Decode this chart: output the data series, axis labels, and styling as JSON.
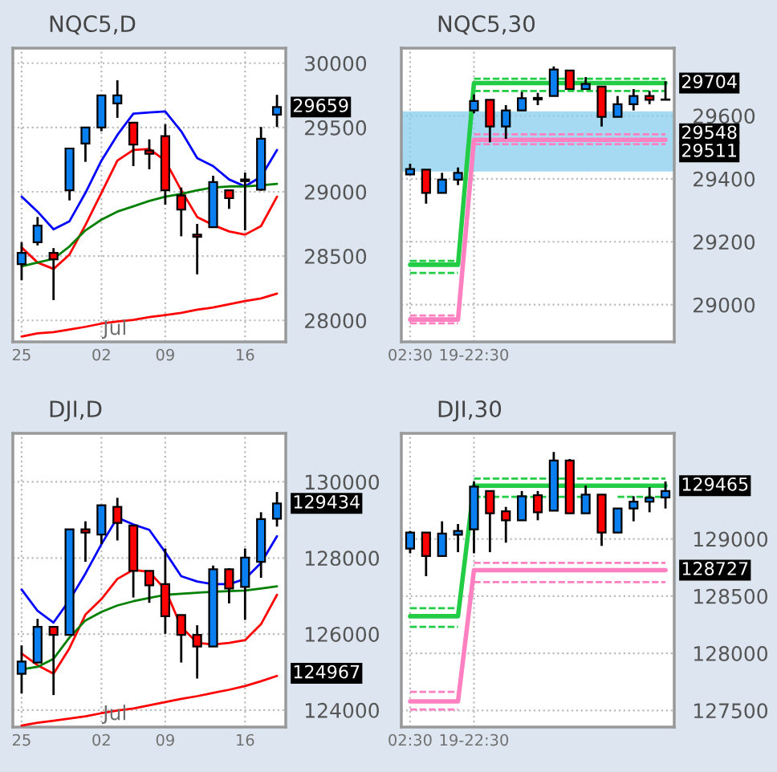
{
  "chart_data": [
    {
      "type": "candlestick",
      "title": "NQC5,D",
      "categories": [
        "25",
        null,
        null,
        null,
        null,
        "02",
        null,
        null,
        null,
        "09",
        null,
        null,
        null,
        null,
        "16",
        null,
        null
      ],
      "ohlc": [
        [
          28437,
          28608,
          28312,
          28525
        ],
        [
          28608,
          28804,
          28583,
          28737
        ],
        [
          28525,
          28562,
          28158,
          28475
        ],
        [
          29012,
          29337,
          28933,
          29337
        ],
        [
          29375,
          29500,
          29233,
          29500
        ],
        [
          29500,
          29750,
          29471,
          29750
        ],
        [
          29687,
          29867,
          29575,
          29750
        ],
        [
          29537,
          29537,
          29200,
          29367
        ],
        [
          29321,
          29408,
          29175,
          29296
        ],
        [
          29433,
          29525,
          28900,
          29012
        ],
        [
          28971,
          29033,
          28654,
          28862
        ],
        [
          28667,
          28750,
          28358,
          28650
        ],
        [
          28725,
          29125,
          28725,
          29075
        ],
        [
          29012,
          29012,
          28867,
          28950
        ],
        [
          29096,
          29150,
          28700,
          29083
        ],
        [
          29017,
          29504,
          29008,
          29412
        ],
        [
          29600,
          29754,
          29504,
          29659
        ]
      ],
      "colors": [
        "#0a7ff0",
        "#0a7ff0",
        "#ff0000",
        "#0a7ff0",
        "#0a7ff0",
        "#0a7ff0",
        "#0a7ff0",
        "#ff0000",
        "#ff0000",
        "#ff0000",
        "#ff0000",
        "#ff0000",
        "#0a7ff0",
        "#ff0000",
        "#ff0000",
        "#0a7ff0",
        "#0a7ff0"
      ],
      "series": [
        {
          "type": "line",
          "color": "#0000ff",
          "values": [
            28962,
            28846,
            28708,
            28771,
            28992,
            29242,
            29442,
            29608,
            29617,
            29625,
            29471,
            29262,
            29200,
            29096,
            29042,
            29117,
            29325
          ]
        },
        {
          "type": "line",
          "color": "#ff0000",
          "values": [
            28567,
            28450,
            28400,
            28512,
            28742,
            28992,
            29242,
            29325,
            29333,
            29242,
            29012,
            28804,
            28742,
            28692,
            28667,
            28733,
            28962
          ]
        },
        {
          "type": "line",
          "color": "#008000",
          "values": [
            28421,
            28450,
            28479,
            28575,
            28700,
            28783,
            28846,
            28887,
            28929,
            28962,
            28983,
            29012,
            29033,
            29042,
            29042,
            29050,
            29062
          ]
        },
        {
          "type": "line",
          "color": "#ff0000",
          "values": [
            27875,
            27900,
            27908,
            27929,
            27950,
            27975,
            27992,
            28004,
            28025,
            28042,
            28058,
            28083,
            28100,
            28125,
            28150,
            28171,
            28208
          ]
        }
      ],
      "ylim": [
        27833,
        30117
      ],
      "yticks": [
        28000,
        28500,
        29000,
        29500,
        30000
      ],
      "grid": true,
      "annotations": [
        "Jul",
        "29659"
      ]
    },
    {
      "type": "candlestick",
      "title": "NQC5,30",
      "categories": [
        "02:30",
        null,
        null,
        null,
        "19-22:30",
        null,
        null,
        null,
        null,
        null,
        null,
        null,
        null,
        null,
        null,
        null,
        null
      ],
      "ohlc": [
        [
          29414,
          29448,
          29414,
          29431
        ],
        [
          29429,
          29429,
          29321,
          29355
        ],
        [
          29355,
          29419,
          29355,
          29397
        ],
        [
          29397,
          29436,
          29380,
          29419
        ],
        [
          29617,
          29668,
          29608,
          29647
        ],
        [
          29651,
          29651,
          29516,
          29566
        ],
        [
          29566,
          29634,
          29527,
          29617
        ],
        [
          29617,
          29676,
          29617,
          29656
        ],
        [
          29652,
          29673,
          29634,
          29657
        ],
        [
          29663,
          29757,
          29663,
          29747
        ],
        [
          29744,
          29744,
          29685,
          29685
        ],
        [
          29685,
          29723,
          29685,
          29701
        ],
        [
          29693,
          29693,
          29566,
          29597
        ],
        [
          29597,
          29663,
          29597,
          29637
        ],
        [
          29637,
          29685,
          29617,
          29663
        ],
        [
          29663,
          29679,
          29637,
          29651
        ],
        [
          29652,
          29710,
          29651,
          29651
        ]
      ],
      "colors": [
        "#0a7ff0",
        "#ff0000",
        "#0a7ff0",
        "#0a7ff0",
        "#0a7ff0",
        "#ff0000",
        "#0a7ff0",
        "#0a7ff0",
        "#0a7ff0",
        "#0a7ff0",
        "#ff0000",
        "#0a7ff0",
        "#ff0000",
        "#0a7ff0",
        "#0a7ff0",
        "#ff0000",
        "#ff0000"
      ],
      "series": [
        {
          "type": "line",
          "color": "#22cc44",
          "line_style": "solid",
          "values": [
            29127,
            29127,
            29127,
            29127,
            29704,
            29704,
            29704,
            29704,
            29704,
            29704,
            29704,
            29704,
            29704,
            29704,
            29704,
            29704,
            29704
          ]
        },
        {
          "type": "line",
          "color": "#22cc44",
          "line_style": "dashed",
          "values": [
            29139,
            29139,
            29139,
            29139,
            null,
            null,
            null,
            null,
            null,
            null,
            null,
            null,
            null,
            null,
            null,
            null,
            null
          ]
        },
        {
          "type": "line",
          "color": "#22cc44",
          "line_style": "dashed",
          "values": [
            29101,
            29101,
            29101,
            29101,
            null,
            null,
            null,
            null,
            null,
            null,
            null,
            null,
            null,
            null,
            null,
            null,
            null
          ]
        },
        {
          "type": "line",
          "color": "#22cc44",
          "line_style": "dashed",
          "values": [
            null,
            null,
            null,
            null,
            29718,
            29718,
            29718,
            29718,
            29718,
            29718,
            29718,
            29718,
            29718,
            29718,
            29718,
            29718,
            29718
          ]
        },
        {
          "type": "line",
          "color": "#22cc44",
          "line_style": "dashed",
          "values": [
            null,
            null,
            null,
            null,
            29679,
            29679,
            29679,
            29679,
            29679,
            29679,
            29679,
            29679,
            29679,
            29679,
            29679,
            29679,
            29679
          ]
        },
        {
          "type": "line",
          "color": "#ff80c0",
          "line_style": "solid",
          "values": [
            28953,
            28953,
            28953,
            28953,
            29524,
            29524,
            29524,
            29524,
            29524,
            29524,
            29524,
            29524,
            29524,
            29524,
            29524,
            29524,
            29524
          ]
        },
        {
          "type": "line",
          "color": "#ff80c0",
          "line_style": "dashed",
          "values": [
            28966,
            28966,
            28966,
            28966,
            null,
            null,
            null,
            null,
            null,
            null,
            null,
            null,
            null,
            null,
            null,
            null,
            null
          ]
        },
        {
          "type": "line",
          "color": "#ff80c0",
          "line_style": "dashed",
          "values": [
            28941,
            28941,
            28941,
            28941,
            null,
            null,
            null,
            null,
            null,
            null,
            null,
            null,
            null,
            null,
            null,
            null,
            null
          ]
        },
        {
          "type": "line",
          "color": "#ff80c0",
          "line_style": "dashed",
          "values": [
            null,
            null,
            null,
            null,
            29541,
            29541,
            29541,
            29541,
            29541,
            29541,
            29541,
            29541,
            29541,
            29541,
            29541,
            29541,
            29541
          ]
        },
        {
          "type": "line",
          "color": "#ff80c0",
          "line_style": "dashed",
          "values": [
            null,
            null,
            null,
            null,
            29510,
            29510,
            29510,
            29510,
            29510,
            29510,
            29510,
            29510,
            29510,
            29510,
            29510,
            29510,
            29510
          ]
        }
      ],
      "bands": [
        {
          "axis": "y",
          "from": 29423,
          "to": 29614,
          "color": "#87cdee"
        }
      ],
      "ylim": [
        28882,
        29815
      ],
      "yticks": [
        29000,
        29200,
        29400,
        29600
      ],
      "grid": true,
      "annotations": [
        "29704",
        "29548",
        "29511"
      ]
    },
    {
      "type": "candlestick",
      "title": "DJI,D",
      "categories": [
        "25",
        null,
        null,
        null,
        null,
        "02",
        null,
        null,
        null,
        "09",
        null,
        null,
        null,
        null,
        "16",
        null,
        null
      ],
      "ohlc": [
        [
          124956,
          125699,
          124438,
          125278
        ],
        [
          125250,
          126399,
          125250,
          126189
        ],
        [
          126189,
          126189,
          124396,
          125979
        ],
        [
          125979,
          128753,
          125979,
          128753
        ],
        [
          128753,
          128963,
          127899,
          128669
        ],
        [
          128613,
          129384,
          128361,
          129384
        ],
        [
          129342,
          129580,
          128459,
          128921
        ],
        [
          128851,
          128851,
          126960,
          127660
        ],
        [
          127660,
          127660,
          126820,
          127282
        ],
        [
          127310,
          128249,
          126007,
          126470
        ],
        [
          126498,
          126498,
          125251,
          125979
        ],
        [
          125979,
          126231,
          124830,
          125671
        ],
        [
          125671,
          127800,
          125671,
          127702
        ],
        [
          127702,
          127730,
          126806,
          127198
        ],
        [
          127240,
          128249,
          126371,
          128011
        ],
        [
          127899,
          129201,
          127478,
          129019
        ],
        [
          129033,
          129734,
          128823,
          129434
        ]
      ],
      "colors": [
        "#0a7ff0",
        "#0a7ff0",
        "#ff0000",
        "#0a7ff0",
        "#ff0000",
        "#0a7ff0",
        "#ff0000",
        "#ff0000",
        "#ff0000",
        "#ff0000",
        "#ff0000",
        "#ff0000",
        "#0a7ff0",
        "#ff0000",
        "#0a7ff0",
        "#0a7ff0",
        "#0a7ff0"
      ],
      "series": [
        {
          "type": "line",
          "color": "#0000ff",
          "values": [
            127170,
            126609,
            126301,
            126890,
            127590,
            128361,
            129061,
            128879,
            128739,
            128151,
            127520,
            127380,
            127310,
            127310,
            127450,
            127870,
            128571
          ]
        },
        {
          "type": "line",
          "color": "#ff0000",
          "values": [
            125489,
            125181,
            124956,
            125629,
            126512,
            126918,
            127450,
            127688,
            127632,
            127170,
            126189,
            125769,
            125727,
            125769,
            125839,
            126259,
            127030
          ]
        },
        {
          "type": "line",
          "color": "#008000",
          "values": [
            125069,
            125139,
            125349,
            125909,
            126357,
            126582,
            126750,
            126862,
            126946,
            127030,
            127058,
            127086,
            127114,
            127128,
            127142,
            127198,
            127254
          ]
        },
        {
          "type": "line",
          "color": "#ff0000",
          "values": [
            123597,
            123667,
            123723,
            123779,
            123835,
            123919,
            123989,
            124045,
            124129,
            124213,
            124297,
            124367,
            124452,
            124536,
            124634,
            124760,
            124900
          ]
        }
      ],
      "ylim": [
        123555,
        131275
      ],
      "yticks": [
        124000,
        126000,
        128000,
        130000
      ],
      "grid": true,
      "annotations": [
        "Jul",
        "129434",
        "124967"
      ]
    },
    {
      "type": "candlestick",
      "title": "DJI,30",
      "categories": [
        "02:30",
        null,
        null,
        null,
        "19-22:30",
        null,
        null,
        null,
        null,
        null,
        null,
        null,
        null,
        null,
        null,
        null,
        null
      ],
      "ohlc": [
        [
          128916,
          129070,
          128874,
          129056
        ],
        [
          129056,
          129056,
          128674,
          128851
        ],
        [
          128851,
          129154,
          128851,
          129047
        ],
        [
          129037,
          129130,
          128884,
          129070
        ],
        [
          129084,
          129503,
          128874,
          129457
        ],
        [
          129419,
          129419,
          128884,
          129224
        ],
        [
          129242,
          129280,
          128967,
          129163
        ],
        [
          129163,
          129419,
          129163,
          129373
        ],
        [
          129382,
          129419,
          129163,
          129233
        ],
        [
          129247,
          129760,
          129247,
          129685
        ],
        [
          129685,
          129699,
          129224,
          129224
        ],
        [
          129224,
          129466,
          129224,
          129387
        ],
        [
          129387,
          129387,
          128939,
          129056
        ],
        [
          129056,
          129266,
          129056,
          129266
        ],
        [
          129266,
          129373,
          129154,
          129326
        ],
        [
          129326,
          129452,
          129233,
          129359
        ],
        [
          129363,
          129503,
          129266,
          129419
        ]
      ],
      "colors": [
        "#0a7ff0",
        "#ff0000",
        "#0a7ff0",
        "#0a7ff0",
        "#0a7ff0",
        "#ff0000",
        "#ff0000",
        "#0a7ff0",
        "#ff0000",
        "#0a7ff0",
        "#ff0000",
        "#0a7ff0",
        "#ff0000",
        "#0a7ff0",
        "#0a7ff0",
        "#0a7ff0",
        "#0a7ff0"
      ],
      "series": [
        {
          "type": "line",
          "color": "#22cc44",
          "line_style": "solid",
          "values": [
            128324,
            128324,
            128324,
            128324,
            129465,
            129465,
            129465,
            129465,
            129465,
            129465,
            129465,
            129465,
            129465,
            129465,
            129465,
            129465,
            129465
          ]
        },
        {
          "type": "line",
          "color": "#22cc44",
          "line_style": "dashed",
          "values": [
            128394,
            128394,
            128394,
            128394,
            null,
            null,
            null,
            null,
            null,
            null,
            null,
            null,
            null,
            null,
            null,
            null,
            null
          ]
        },
        {
          "type": "line",
          "color": "#22cc44",
          "line_style": "dashed",
          "values": [
            128231,
            128231,
            128231,
            128231,
            null,
            null,
            null,
            null,
            null,
            null,
            null,
            null,
            null,
            null,
            null,
            null,
            null
          ]
        },
        {
          "type": "line",
          "color": "#22cc44",
          "line_style": "dashed",
          "values": [
            null,
            null,
            null,
            null,
            129527,
            129527,
            129527,
            129527,
            129527,
            129527,
            129527,
            129527,
            129527,
            129527,
            129527,
            129527,
            129527
          ]
        },
        {
          "type": "line",
          "color": "#22cc44",
          "line_style": "dashed",
          "values": [
            null,
            null,
            null,
            null,
            129368,
            129368,
            129368,
            129368,
            129368,
            129368,
            129368,
            129368,
            null,
            129368,
            129368,
            129368,
            129368
          ]
        },
        {
          "type": "line",
          "color": "#ff80c0",
          "line_style": "solid",
          "values": [
            127579,
            127579,
            127579,
            127579,
            128727,
            128727,
            128727,
            128727,
            128727,
            128727,
            128727,
            128727,
            128727,
            128727,
            128727,
            128727,
            128727
          ]
        },
        {
          "type": "line",
          "color": "#ff80c0",
          "line_style": "dashed",
          "values": [
            127663,
            127663,
            127663,
            127663,
            null,
            null,
            null,
            null,
            null,
            null,
            null,
            null,
            null,
            null,
            null,
            null,
            null
          ]
        },
        {
          "type": "line",
          "color": "#ff80c0",
          "line_style": "dashed",
          "values": [
            127509,
            127509,
            127509,
            127509,
            null,
            null,
            null,
            null,
            null,
            null,
            null,
            null,
            null,
            null,
            null,
            null,
            null
          ]
        },
        {
          "type": "line",
          "color": "#ff80c0",
          "line_style": "dashed",
          "values": [
            null,
            null,
            null,
            null,
            128790,
            128790,
            128790,
            128790,
            128790,
            128790,
            128790,
            128790,
            128790,
            128790,
            128790,
            128790,
            128790
          ]
        },
        {
          "type": "line",
          "color": "#ff80c0",
          "line_style": "dashed",
          "values": [
            null,
            null,
            null,
            null,
            128623,
            128623,
            128623,
            128623,
            128623,
            128623,
            128623,
            128623,
            128623,
            128623,
            128623,
            128623,
            128623
          ]
        }
      ],
      "ylim": [
        127355,
        129923
      ],
      "yticks": [
        127500,
        128000,
        128500,
        129000
      ],
      "grid": true,
      "annotations": [
        "129465",
        "128727"
      ]
    }
  ]
}
